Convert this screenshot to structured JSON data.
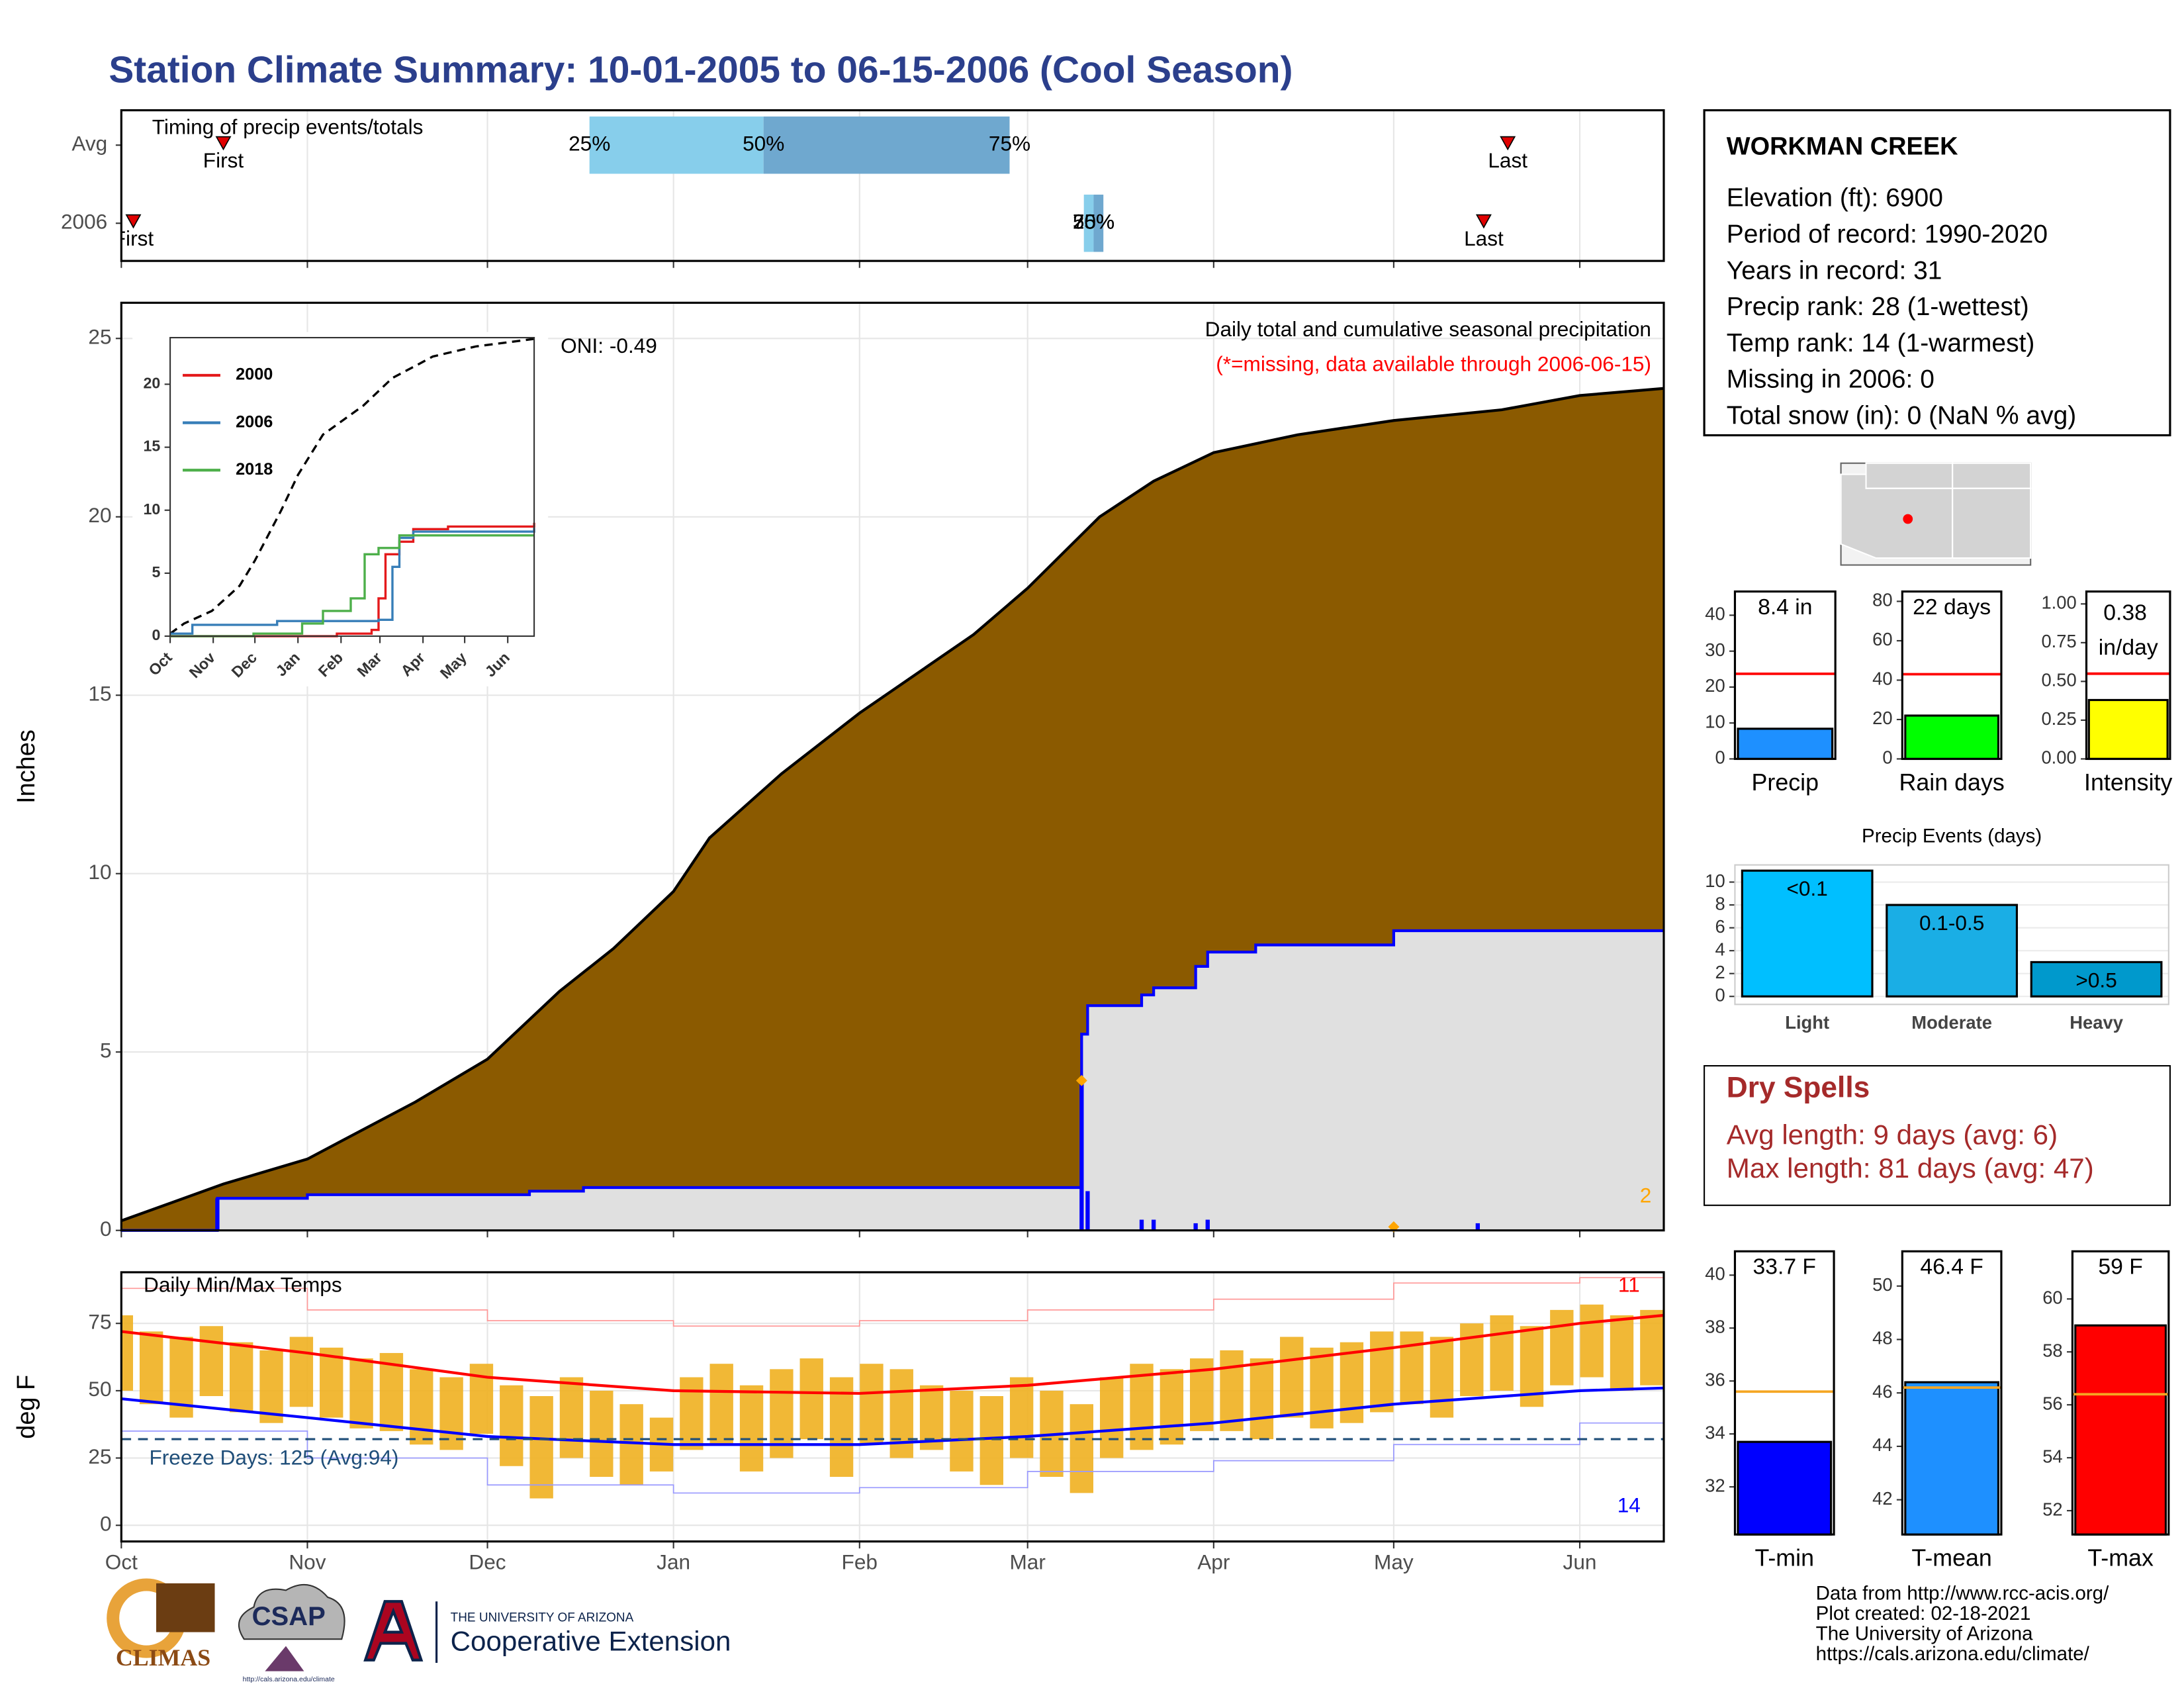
{
  "title": "Station Climate Summary: 10-01-2005 to 06-15-2006 (Cool Season)",
  "station": {
    "name": "WORKMAN CREEK",
    "lines": [
      "Elevation (ft): 6900",
      "Period of record: 1990-2020",
      "Years in record: 31",
      "Precip rank: 28 (1-wettest)",
      "Temp rank: 14 (1-warmest)",
      "Missing in 2006: 0",
      "Total snow (in): 0 (NaN % avg)"
    ]
  },
  "dry_spells": {
    "title": "Dry Spells",
    "lines": [
      "Avg length: 9 days (avg: 6)",
      "Max length: 81 days (avg: 47)"
    ]
  },
  "footer": [
    "Data from http://www.rcc-acis.org/",
    "Plot created: 02-18-2021",
    "The University of Arizona",
    "https://cals.arizona.edu/climate/"
  ],
  "logos": {
    "climas": "CLIMAS",
    "csap": "CSAP",
    "csap_url": "http://cals.arizona.edu/climate",
    "ua": "THE UNIVERSITY OF ARIZONA",
    "ce": "Cooperative Extension"
  },
  "chart_data": [
    {
      "type": "timing",
      "title": "Timing of precip events/totals",
      "categories": [
        "Avg",
        "2006"
      ],
      "first": [
        17,
        2
      ],
      "last": [
        231,
        227
      ],
      "first_label": "First",
      "last_label": "Last",
      "quartiles": [
        [
          78,
          107,
          148
        ],
        [
          162,
          162,
          162
        ]
      ],
      "quartile_labels": [
        "25%",
        "50%",
        "75%"
      ],
      "quartile_colors": [
        "#87ceeb",
        "#6fa8cf"
      ],
      "marker_color": "#e00000",
      "xlim": [
        0,
        257
      ],
      "xticks": [
        0,
        31,
        61,
        92,
        123,
        151,
        182,
        212,
        243
      ],
      "grid": true
    },
    {
      "type": "precip",
      "ylabel": "Inches",
      "annotations": [
        {
          "text": "ONI: -0.49",
          "color": "#000000"
        },
        {
          "text": "Daily total and cumulative seasonal precipitation",
          "color": "#000000"
        },
        {
          "text": "(*=missing, data available through 2006-06-15)",
          "color": "#ff0000"
        },
        {
          "text": "2",
          "color": "#ffa500"
        }
      ],
      "xlim": [
        0,
        257
      ],
      "xticks": [
        0,
        31,
        61,
        92,
        123,
        151,
        182,
        212,
        243
      ],
      "ylim": [
        0,
        26
      ],
      "yticks": [
        0,
        5,
        10,
        15,
        20,
        25
      ],
      "grid": true,
      "series": [
        {
          "style": "area",
          "color": "#000000",
          "fill": "#8b5a00",
          "x": [
            0,
            17,
            31,
            49,
            61,
            73,
            82,
            92,
            98,
            110,
            123,
            142,
            151,
            163,
            172,
            182,
            196,
            212,
            230,
            243,
            257
          ],
          "values": [
            0.27,
            1.3,
            2.0,
            3.6,
            4.8,
            6.7,
            7.9,
            9.5,
            11.0,
            12.8,
            14.5,
            16.7,
            18.0,
            20.0,
            21.0,
            21.8,
            22.3,
            22.7,
            23.0,
            23.4,
            23.6
          ]
        },
        {
          "style": "step_area",
          "color": "#0000ff",
          "fill": "#e0e0e0",
          "x": [
            0,
            16,
            31,
            68,
            77,
            160,
            161,
            170,
            172,
            179,
            181,
            189,
            212,
            257
          ],
          "values": [
            0,
            0.9,
            1.0,
            1.1,
            1.2,
            5.5,
            6.3,
            6.6,
            6.8,
            7.4,
            7.8,
            8.0,
            8.4,
            8.4
          ]
        },
        {
          "style": "bars",
          "color": "#0000ff",
          "x": [
            16,
            160,
            161,
            170,
            172,
            179,
            181,
            226
          ],
          "values": [
            0.9,
            4.2,
            1.1,
            0.3,
            0.3,
            0.2,
            0.3,
            0.2
          ]
        }
      ],
      "markers": {
        "x": [
          160,
          212
        ],
        "values": [
          4.2,
          0.1
        ],
        "color": "#ffa500"
      }
    },
    {
      "type": "line",
      "xlim": [
        0,
        262
      ],
      "xticks": [
        {
          "value": 0,
          "label": "Oct"
        },
        {
          "value": 31,
          "label": "Nov"
        },
        {
          "value": 61,
          "label": "Dec"
        },
        {
          "value": 92,
          "label": "Jan"
        },
        {
          "value": 123,
          "label": "Feb"
        },
        {
          "value": 151,
          "label": "Mar"
        },
        {
          "value": 182,
          "label": "Apr"
        },
        {
          "value": 212,
          "label": "May"
        },
        {
          "value": 243,
          "label": "Jun"
        }
      ],
      "ylim": [
        0,
        23.7
      ],
      "yticks": [
        0,
        5,
        10,
        15,
        20
      ],
      "series": [
        {
          "color": "#000000",
          "dashed": true,
          "x": [
            0,
            10,
            30,
            50,
            61,
            80,
            92,
            110,
            139,
            160,
            179,
            189,
            220,
            262
          ],
          "values": [
            0.2,
            1,
            2,
            4,
            6,
            10,
            12.8,
            16,
            18.3,
            20.5,
            21.6,
            22.2,
            23,
            23.6
          ]
        },
        {
          "name": "2000",
          "color": "#e41a1c",
          "step": true,
          "x": [
            0,
            120,
            145,
            150,
            155,
            165,
            175,
            200,
            262
          ],
          "values": [
            0,
            0.2,
            0.5,
            3,
            6.5,
            7.5,
            8.5,
            8.7,
            9.0
          ]
        },
        {
          "name": "2006",
          "color": "#377eb8",
          "step": true,
          "x": [
            0,
            16,
            77,
            150,
            160,
            165,
            175,
            262
          ],
          "values": [
            0.2,
            0.9,
            1.2,
            1.3,
            5.5,
            7.8,
            8.3,
            8.6
          ]
        },
        {
          "name": "2018",
          "color": "#4daf4a",
          "step": true,
          "x": [
            0,
            60,
            95,
            110,
            130,
            140,
            150,
            165,
            262
          ],
          "values": [
            0,
            0.2,
            1,
            2,
            3,
            6.5,
            7,
            8,
            8.0
          ]
        }
      ]
    },
    {
      "type": "bar",
      "categories": [
        "Precip"
      ],
      "values": [
        8.4
      ],
      "value_labels": [
        "8.4 in"
      ],
      "color": "#1e90ff",
      "reference_line": 23.7,
      "reference_color": "#ff0000",
      "ylim": [
        0,
        46.6
      ],
      "yticks": [
        0,
        10,
        20,
        30,
        40
      ]
    },
    {
      "type": "bar",
      "categories": [
        "Rain days"
      ],
      "values": [
        22
      ],
      "value_labels": [
        "22 days"
      ],
      "color": "#00ff00",
      "reference_line": 43,
      "reference_color": "#ff0000",
      "ylim": [
        0,
        85
      ],
      "yticks": [
        0,
        20,
        40,
        60,
        80
      ]
    },
    {
      "type": "bar",
      "categories": [
        "Intensity"
      ],
      "values": [
        0.38
      ],
      "value_labels": [
        "0.38 in/day"
      ],
      "color": "#ffff00",
      "reference_line": 0.55,
      "reference_color": "#ff0000",
      "ylim": [
        0,
        1.08
      ],
      "yticks": [
        {
          "value": 0,
          "label": "0.00"
        },
        {
          "value": 0.25,
          "label": "0.25"
        },
        {
          "value": 0.5,
          "label": "0.50"
        },
        {
          "value": 0.75,
          "label": "0.75"
        },
        {
          "value": 1,
          "label": "1.00"
        }
      ]
    },
    {
      "type": "bar",
      "title": "Precip Events (days)",
      "categories": [
        "Light",
        "Moderate",
        "Heavy"
      ],
      "values": [
        11,
        8,
        3
      ],
      "bar_labels": [
        "<0.1",
        "0.1-0.5",
        ">0.5"
      ],
      "colors": [
        "#00bfff",
        "#1aaee5",
        "#0099cc"
      ],
      "ylim": [
        -0.7,
        11.5
      ],
      "yticks": [
        0,
        2,
        4,
        6,
        8,
        10
      ],
      "grid": true
    },
    {
      "type": "temps",
      "title": "Daily Min/Max Temps",
      "ylabel": "deg F",
      "annotations": [
        {
          "text": "Freeze Days: 125 (Avg:94)",
          "color": "#1f4e79"
        },
        {
          "text": "11",
          "color": "#ff0000"
        },
        {
          "text": "14",
          "color": "#0000ff"
        }
      ],
      "freeze_line": 32,
      "freeze_color": "#1f4e79",
      "xlim": [
        0,
        257
      ],
      "xticks": [
        {
          "value": 0,
          "label": "Oct"
        },
        {
          "value": 31,
          "label": "Nov"
        },
        {
          "value": 61,
          "label": "Dec"
        },
        {
          "value": 92,
          "label": "Jan"
        },
        {
          "value": 123,
          "label": "Feb"
        },
        {
          "value": 151,
          "label": "Mar"
        },
        {
          "value": 182,
          "label": "Apr"
        },
        {
          "value": 212,
          "label": "May"
        },
        {
          "value": 243,
          "label": "Jun"
        }
      ],
      "ylim": [
        -6,
        94
      ],
      "yticks": [
        0,
        25,
        50,
        75
      ],
      "grid": true,
      "series": [
        {
          "style": "range_bars",
          "color": "#f0b020",
          "x": [
            0,
            5,
            10,
            15,
            20,
            25,
            30,
            35,
            40,
            45,
            50,
            55,
            60,
            65,
            70,
            75,
            80,
            85,
            90,
            95,
            100,
            105,
            110,
            115,
            120,
            125,
            130,
            135,
            140,
            145,
            150,
            155,
            160,
            165,
            170,
            175,
            180,
            185,
            190,
            195,
            200,
            205,
            210,
            215,
            220,
            225,
            230,
            235,
            240,
            245,
            250,
            255
          ],
          "values": [
            78,
            72,
            70,
            74,
            68,
            65,
            70,
            66,
            62,
            64,
            58,
            55,
            60,
            52,
            48,
            55,
            50,
            45,
            40,
            55,
            60,
            52,
            58,
            62,
            55,
            60,
            58,
            52,
            50,
            48,
            55,
            50,
            45,
            55,
            60,
            58,
            62,
            65,
            62,
            70,
            66,
            68,
            72,
            72,
            70,
            75,
            78,
            74,
            80,
            82,
            78,
            80
          ],
          "low": [
            50,
            45,
            40,
            48,
            42,
            38,
            44,
            40,
            36,
            35,
            30,
            28,
            34,
            22,
            10,
            25,
            18,
            15,
            20,
            28,
            30,
            20,
            25,
            32,
            18,
            30,
            25,
            28,
            20,
            15,
            25,
            18,
            12,
            25,
            28,
            30,
            35,
            35,
            32,
            40,
            36,
            38,
            42,
            45,
            40,
            48,
            50,
            44,
            52,
            55,
            50,
            52
          ]
        },
        {
          "style": "line",
          "step": true,
          "color": "#ff9999",
          "width": 0.8,
          "x": [
            0,
            31,
            61,
            92,
            123,
            151,
            182,
            212,
            243,
            257
          ],
          "values": [
            88,
            80,
            76,
            74,
            76,
            80,
            84,
            90,
            92,
            92
          ]
        },
        {
          "style": "line",
          "step": true,
          "color": "#9999ff",
          "width": 0.8,
          "x": [
            0,
            31,
            61,
            92,
            123,
            151,
            182,
            212,
            243,
            257
          ],
          "values": [
            35,
            25,
            15,
            12,
            14,
            20,
            24,
            30,
            38,
            42
          ]
        },
        {
          "style": "line",
          "color": "#ff0000",
          "width": 2,
          "x": [
            0,
            31,
            61,
            92,
            123,
            151,
            182,
            212,
            243,
            257
          ],
          "values": [
            72,
            64,
            55,
            50,
            49,
            52,
            58,
            66,
            75,
            78
          ]
        },
        {
          "style": "line",
          "color": "#0000ff",
          "width": 2,
          "x": [
            0,
            31,
            61,
            92,
            123,
            151,
            182,
            212,
            243,
            257
          ],
          "values": [
            47,
            40,
            33,
            30,
            30,
            33,
            38,
            45,
            50,
            51
          ]
        }
      ]
    },
    {
      "type": "bar",
      "categories": [
        "T-min"
      ],
      "values": [
        33.7
      ],
      "value_labels": [
        "33.7 F"
      ],
      "color": "#0000ff",
      "reference_line": 35.6,
      "reference_color": "#f5a623",
      "ylim": [
        30.2,
        40.9
      ],
      "yticks": [
        32,
        34,
        36,
        38,
        40
      ]
    },
    {
      "type": "bar",
      "categories": [
        "T-mean"
      ],
      "values": [
        46.4
      ],
      "value_labels": [
        "46.4 F"
      ],
      "color": "#1e90ff",
      "reference_line": 46.2,
      "reference_color": "#f5a623",
      "ylim": [
        40.7,
        51.3
      ],
      "yticks": [
        42,
        44,
        46,
        48,
        50
      ]
    },
    {
      "type": "bar",
      "categories": [
        "T-max"
      ],
      "values": [
        59
      ],
      "value_labels": [
        "59 F"
      ],
      "color": "#ff0000",
      "reference_line": 56.4,
      "reference_color": "#f5a623",
      "ylim": [
        51.1,
        61.8
      ],
      "yticks": [
        52,
        54,
        56,
        58,
        60
      ]
    }
  ]
}
